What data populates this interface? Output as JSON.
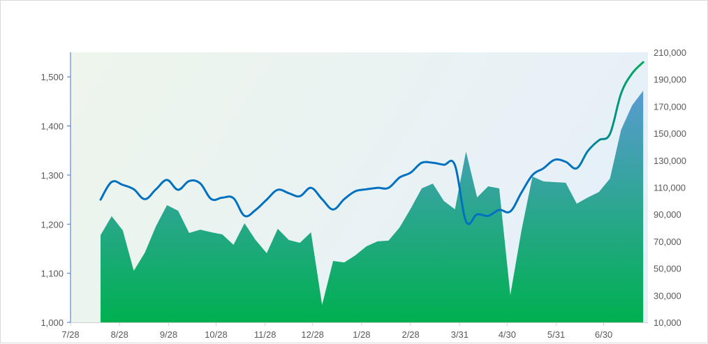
{
  "chart_data": {
    "type": "area+line",
    "title": "",
    "x_unit": "days since 7/28",
    "xlim": [
      0,
      365
    ],
    "x_ticks": [
      {
        "label": "7/28",
        "day": 0
      },
      {
        "label": "8/28",
        "day": 31
      },
      {
        "label": "9/28",
        "day": 62
      },
      {
        "label": "10/28",
        "day": 92
      },
      {
        "label": "11/28",
        "day": 123
      },
      {
        "label": "12/28",
        "day": 153
      },
      {
        "label": "1/28",
        "day": 184
      },
      {
        "label": "2/28",
        "day": 215
      },
      {
        "label": "3/31",
        "day": 246
      },
      {
        "label": "4/30",
        "day": 276
      },
      {
        "label": "5/31",
        "day": 307
      },
      {
        "label": "6/30",
        "day": 337
      }
    ],
    "y_left": {
      "lim": [
        1000,
        1550
      ],
      "ticks": [
        "1,000",
        "1,100",
        "1,200",
        "1,300",
        "1,400",
        "1,500"
      ],
      "tick_values": [
        1000,
        1100,
        1200,
        1300,
        1400,
        1500
      ]
    },
    "y_right": {
      "lim": [
        10000,
        210000
      ],
      "ticks": [
        "10,000",
        "30,000",
        "50,000",
        "70,000",
        "90,000",
        "110,000",
        "130,000",
        "150,000",
        "170,000",
        "190,000",
        "210,000"
      ],
      "tick_values": [
        10000,
        30000,
        50000,
        70000,
        90000,
        110000,
        130000,
        150000,
        170000,
        190000,
        210000
      ]
    },
    "x_start_day": 19,
    "x_step_days": 7,
    "series": [
      {
        "name": "area",
        "type": "area",
        "axis": "right",
        "colors": [
          "#5b9bd5",
          "#00b050"
        ],
        "values": [
          74600,
          88600,
          78200,
          48200,
          61700,
          81300,
          96800,
          92700,
          76200,
          78700,
          76700,
          75100,
          67400,
          83400,
          71000,
          61200,
          79300,
          71000,
          68900,
          76700,
          22900,
          55500,
          54400,
          59600,
          66300,
          70000,
          70500,
          80300,
          94200,
          109200,
          112800,
          99900,
          93700,
          136600,
          102500,
          110800,
          109200,
          30200,
          77700,
          118000,
          114400,
          113900,
          113400,
          97900,
          102500,
          106600,
          116500,
          152600,
          170700,
          181600
        ]
      },
      {
        "name": "line",
        "type": "line",
        "axis": "left",
        "colors": [
          "#0070c0",
          "#00b050"
        ],
        "values": [
          1250,
          1286,
          1280,
          1271,
          1251,
          1271,
          1290,
          1270,
          1288,
          1283,
          1251,
          1254,
          1253,
          1217,
          1229,
          1250,
          1270,
          1263,
          1257,
          1274,
          1251,
          1230,
          1251,
          1267,
          1271,
          1274,
          1274,
          1295,
          1305,
          1325,
          1325,
          1321,
          1320,
          1206,
          1220,
          1217,
          1229,
          1226,
          1264,
          1300,
          1314,
          1331,
          1327,
          1314,
          1349,
          1371,
          1384,
          1466,
          1507,
          1530
        ]
      }
    ],
    "grid": false,
    "legend": "none"
  }
}
